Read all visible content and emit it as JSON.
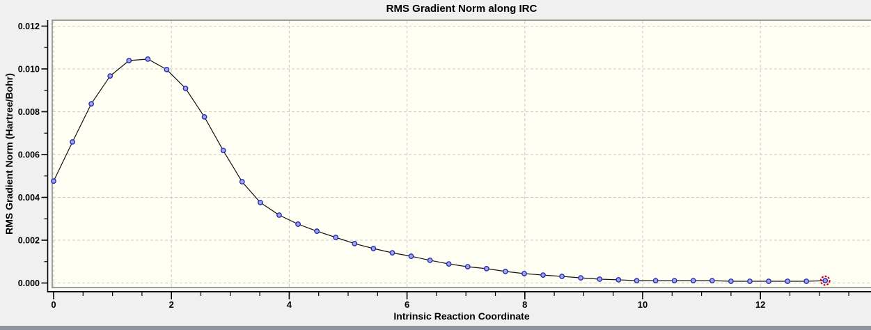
{
  "window": {
    "background": "#f0f0f0",
    "plot_background": "#fffff4",
    "frame_color": "#808080",
    "grid_color": "#c9c9c9",
    "axis_color": "#000000",
    "bottom_bar_color": "#8f959c"
  },
  "chart_data": {
    "type": "line",
    "title": "RMS Gradient Norm along IRC",
    "xlabel": "Intrinsic Reaction Coordinate",
    "ylabel": "RMS Gradient Norm (Hartree/Bohr)",
    "xlim": [
      0,
      13.85
    ],
    "ylim": [
      0,
      0.0123
    ],
    "grid": "dashed",
    "legend": "none",
    "x_major_ticks": [
      0,
      2,
      4,
      6,
      8,
      10,
      12
    ],
    "x_tick_labels": [
      "0",
      "2",
      "4",
      "6",
      "8",
      "10",
      "12"
    ],
    "x_minor_step": 0.5,
    "x_minor_max": 13.5,
    "y_major_ticks": [
      0,
      0.002,
      0.004,
      0.006,
      0.008,
      0.01,
      0.012
    ],
    "y_tick_labels": [
      "0.000",
      "0.002",
      "0.004",
      "0.006",
      "0.008",
      "0.010",
      "0.012"
    ],
    "y_minor_step": 0.001,
    "series": [
      {
        "name": "RMS Gradient Norm",
        "line_color": "#111111",
        "marker": "circle",
        "marker_fill": "#a0a8e4",
        "marker_stroke": "#2929b8",
        "x": [
          0.0,
          0.32,
          0.64,
          0.96,
          1.28,
          1.6,
          1.92,
          2.24,
          2.56,
          2.88,
          3.2,
          3.51,
          3.83,
          4.15,
          4.47,
          4.79,
          5.11,
          5.43,
          5.75,
          6.07,
          6.39,
          6.71,
          7.03,
          7.35,
          7.67,
          7.99,
          8.31,
          8.63,
          8.95,
          9.27,
          9.59,
          9.9,
          10.22,
          10.54,
          10.86,
          11.18,
          11.5,
          11.82,
          12.14,
          12.46,
          12.78,
          13.1
        ],
        "y": [
          0.00476,
          0.00659,
          0.00837,
          0.00967,
          0.01039,
          0.01046,
          0.00997,
          0.00909,
          0.00776,
          0.00619,
          0.00473,
          0.00376,
          0.00317,
          0.00275,
          0.00242,
          0.00213,
          0.00184,
          0.00161,
          0.00141,
          0.00125,
          0.00106,
          0.00089,
          0.00076,
          0.00067,
          0.00054,
          0.00044,
          0.00037,
          0.00031,
          0.00024,
          0.00018,
          0.00015,
          0.00011,
          0.00011,
          0.00011,
          0.00011,
          0.00011,
          8e-05,
          8e-05,
          8e-05,
          8e-05,
          8e-05,
          0.00011
        ]
      }
    ],
    "selected_point": {
      "series": 0,
      "index": 41,
      "ring_color": "#d40000",
      "ring_style": "dashed"
    }
  }
}
